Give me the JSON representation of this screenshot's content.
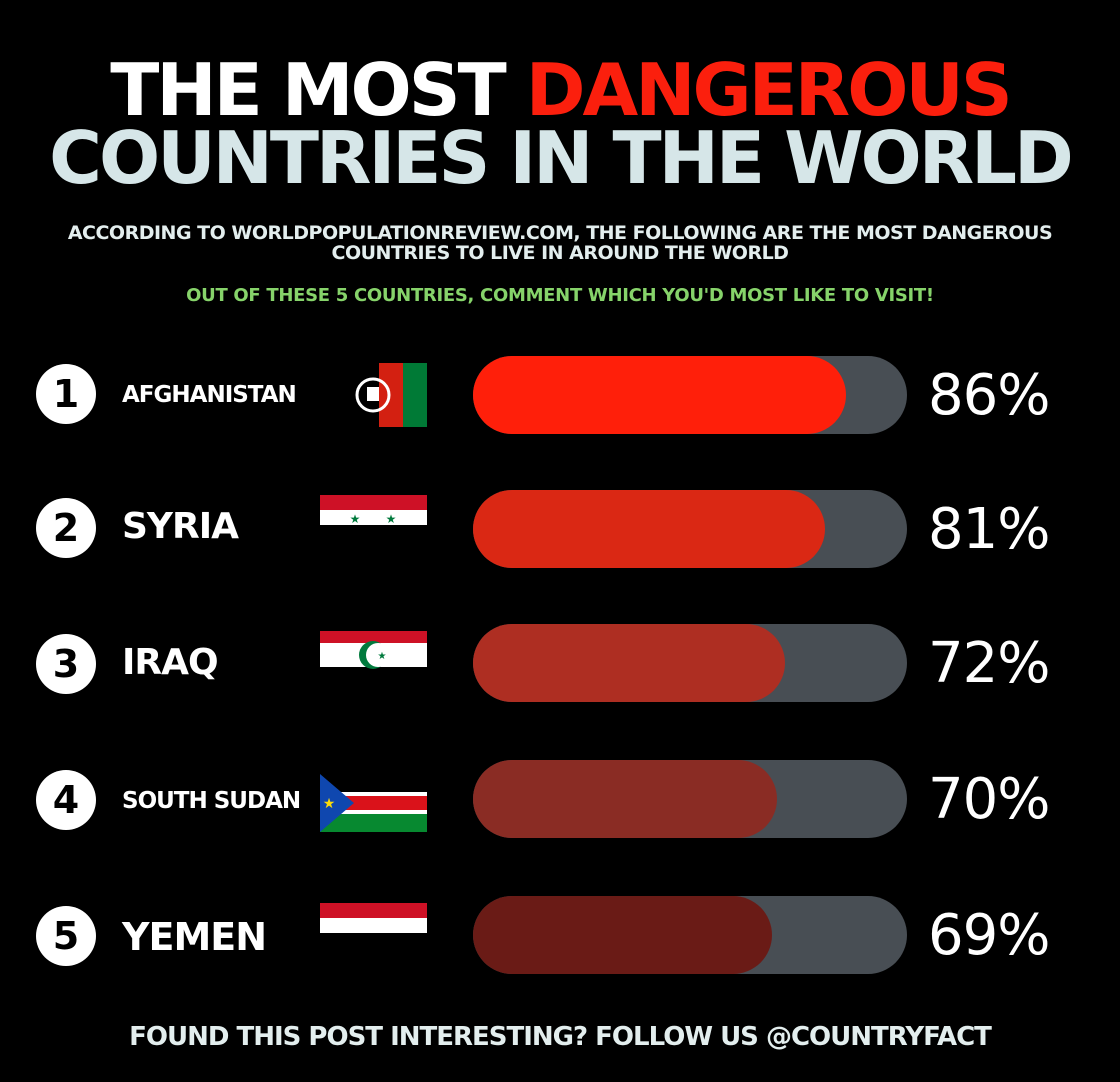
{
  "title": {
    "line1_prefix": "THE MOST ",
    "line1_accent": "DANGEROUS",
    "line2": "COUNTRIES IN THE WORLD"
  },
  "subtitle": {
    "line1": "ACCORDING TO WORLDPOPULATIONREVIEW.COM, THE FOLLOWING ARE THE MOST DANGEROUS",
    "line2": "COUNTRIES TO LIVE IN AROUND THE WORLD"
  },
  "call_to_action": "OUT OF THESE 5 COUNTRIES, COMMENT WHICH YOU'D MOST LIKE TO VISIT!",
  "footer": "FOUND THIS POST INTERESTING? FOLLOW US @COUNTRYFACT",
  "colors": {
    "background": "#000000",
    "accent_red": "#fb1f0d",
    "cta_green": "#86d36a",
    "bar_track": "#484e54"
  },
  "rows": [
    {
      "rank": "1",
      "country": "AFGHANISTAN",
      "value_label": "86%",
      "flag_icon": "afghanistan-flag-icon",
      "bar_color": "#ff1f0a"
    },
    {
      "rank": "2",
      "country": "SYRIA",
      "value_label": "81%",
      "flag_icon": "syria-flag-icon",
      "bar_color": "#da2814"
    },
    {
      "rank": "3",
      "country": "IRAQ",
      "value_label": "72%",
      "flag_icon": "iraq-flag-icon",
      "bar_color": "#ae2e22"
    },
    {
      "rank": "4",
      "country": "SOUTH SUDAN",
      "value_label": "70%",
      "flag_icon": "south-sudan-flag-icon",
      "bar_color": "#8a2c24"
    },
    {
      "rank": "5",
      "country": "YEMEN",
      "value_label": "69%",
      "flag_icon": "yemen-flag-icon",
      "bar_color": "#6a1b16"
    }
  ],
  "chart_data": {
    "type": "bar",
    "orientation": "horizontal",
    "categories": [
      "AFGHANISTAN",
      "SYRIA",
      "IRAQ",
      "SOUTH SUDAN",
      "YEMEN"
    ],
    "values": [
      86,
      81,
      72,
      70,
      69
    ],
    "unit": "%",
    "xlim": [
      0,
      100
    ]
  }
}
